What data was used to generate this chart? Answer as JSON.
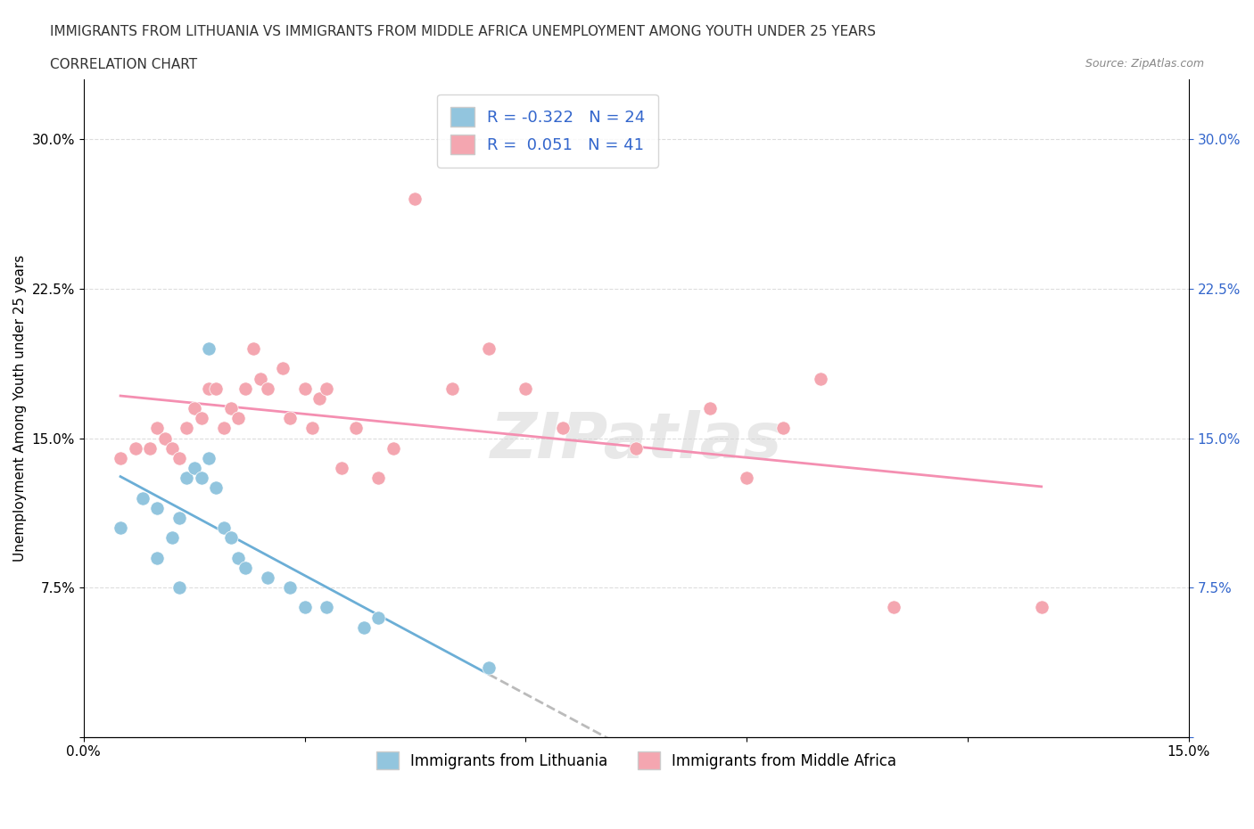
{
  "title_line1": "IMMIGRANTS FROM LITHUANIA VS IMMIGRANTS FROM MIDDLE AFRICA UNEMPLOYMENT AMONG YOUTH UNDER 25 YEARS",
  "title_line2": "CORRELATION CHART",
  "source": "Source: ZipAtlas.com",
  "xlabel": "",
  "ylabel": "Unemployment Among Youth under 25 years",
  "legend_label1": "Immigrants from Lithuania",
  "legend_label2": "Immigrants from Middle Africa",
  "R1": -0.322,
  "N1": 24,
  "R2": 0.051,
  "N2": 41,
  "color1": "#92C5DE",
  "color2": "#F4A6B0",
  "line1_color": "#6BAED6",
  "line2_color": "#F48FB1",
  "trendline1_dashed_color": "#BBBBBB",
  "xlim": [
    0.0,
    0.15
  ],
  "ylim": [
    0.0,
    0.33
  ],
  "xticks": [
    0.0,
    0.03,
    0.06,
    0.09,
    0.12,
    0.15
  ],
  "xtick_labels": [
    "0.0%",
    "",
    "",
    "",
    "",
    "15.0%"
  ],
  "yticks": [
    0.0,
    0.075,
    0.15,
    0.225,
    0.3
  ],
  "ytick_labels": [
    "",
    "7.5%",
    "15.0%",
    "22.5%",
    "30.0%"
  ],
  "grid_color": "#DDDDDD",
  "background_color": "#FFFFFF",
  "watermark": "ZIPatlas",
  "scatter_blue_x": [
    0.005,
    0.008,
    0.01,
    0.01,
    0.012,
    0.013,
    0.013,
    0.014,
    0.015,
    0.016,
    0.017,
    0.017,
    0.018,
    0.019,
    0.02,
    0.021,
    0.022,
    0.025,
    0.028,
    0.03,
    0.033,
    0.038,
    0.04,
    0.055
  ],
  "scatter_blue_y": [
    0.105,
    0.12,
    0.115,
    0.09,
    0.1,
    0.11,
    0.075,
    0.13,
    0.135,
    0.13,
    0.195,
    0.14,
    0.125,
    0.105,
    0.1,
    0.09,
    0.085,
    0.08,
    0.075,
    0.065,
    0.065,
    0.055,
    0.06,
    0.035
  ],
  "scatter_pink_x": [
    0.005,
    0.007,
    0.009,
    0.01,
    0.011,
    0.012,
    0.013,
    0.014,
    0.015,
    0.016,
    0.017,
    0.018,
    0.019,
    0.02,
    0.021,
    0.022,
    0.023,
    0.024,
    0.025,
    0.027,
    0.028,
    0.03,
    0.031,
    0.032,
    0.033,
    0.035,
    0.037,
    0.04,
    0.042,
    0.045,
    0.05,
    0.055,
    0.06,
    0.065,
    0.075,
    0.085,
    0.09,
    0.095,
    0.1,
    0.11,
    0.13
  ],
  "scatter_pink_y": [
    0.14,
    0.145,
    0.145,
    0.155,
    0.15,
    0.145,
    0.14,
    0.155,
    0.165,
    0.16,
    0.175,
    0.175,
    0.155,
    0.165,
    0.16,
    0.175,
    0.195,
    0.18,
    0.175,
    0.185,
    0.16,
    0.175,
    0.155,
    0.17,
    0.175,
    0.135,
    0.155,
    0.13,
    0.145,
    0.27,
    0.175,
    0.195,
    0.175,
    0.155,
    0.145,
    0.165,
    0.13,
    0.155,
    0.18,
    0.065,
    0.065
  ]
}
